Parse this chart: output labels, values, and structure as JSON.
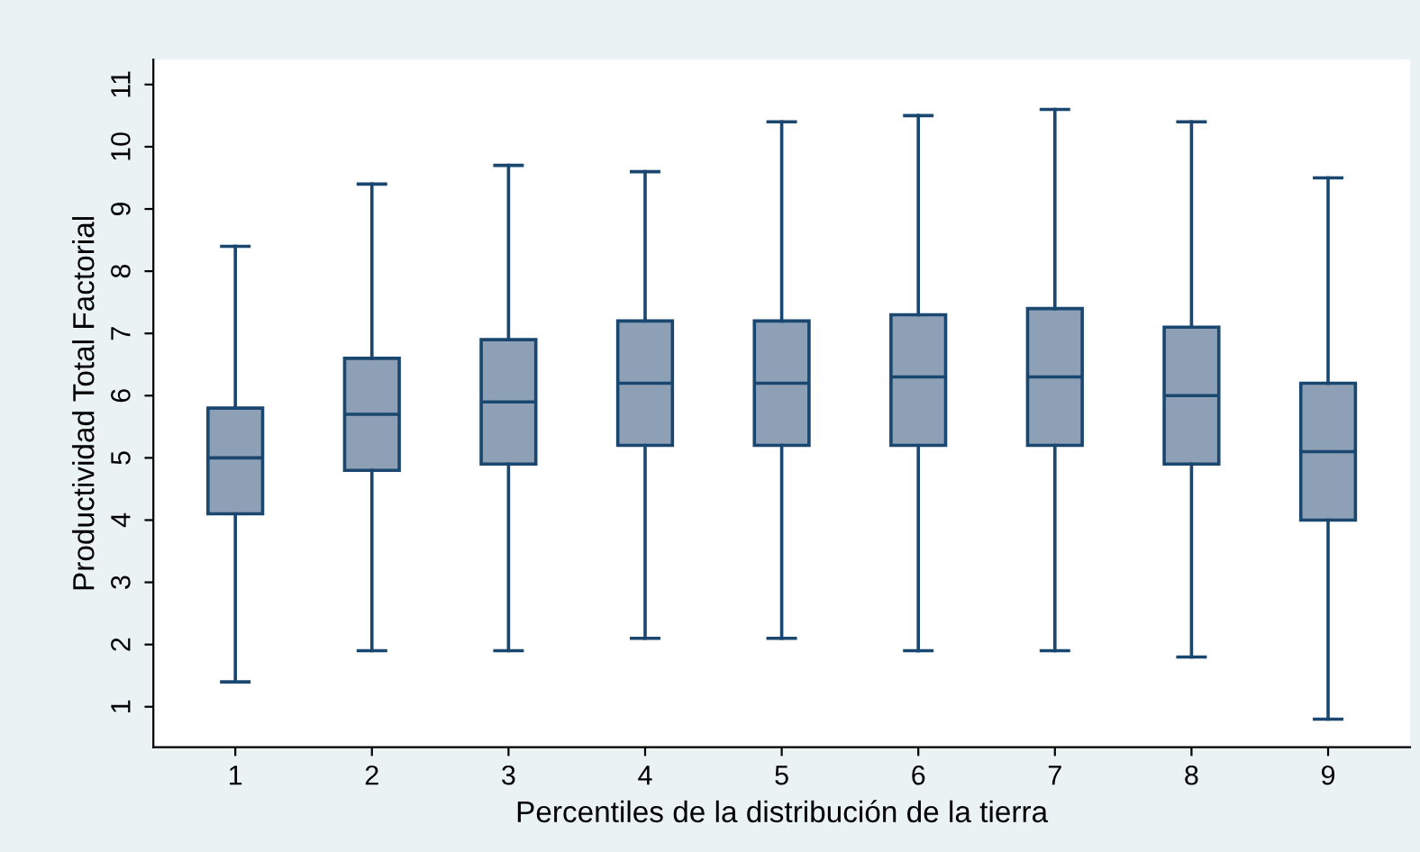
{
  "chart_data": {
    "type": "box",
    "xlabel": "Percentiles de la distribución de la tierra",
    "ylabel": "Productividad Total Factorial",
    "categories": [
      "1",
      "2",
      "3",
      "4",
      "5",
      "6",
      "7",
      "8",
      "9"
    ],
    "color": "#8da0b6",
    "boxes": [
      {
        "low": 1.4,
        "q1": 4.1,
        "median": 5.0,
        "q3": 5.8,
        "high": 8.4
      },
      {
        "low": 1.9,
        "q1": 4.8,
        "median": 5.7,
        "q3": 6.6,
        "high": 9.4
      },
      {
        "low": 1.9,
        "q1": 4.9,
        "median": 5.9,
        "q3": 6.9,
        "high": 9.7
      },
      {
        "low": 2.1,
        "q1": 5.2,
        "median": 6.2,
        "q3": 7.2,
        "high": 9.6
      },
      {
        "low": 2.1,
        "q1": 5.2,
        "median": 6.2,
        "q3": 7.2,
        "high": 10.4
      },
      {
        "low": 1.9,
        "q1": 5.2,
        "median": 6.3,
        "q3": 7.3,
        "high": 10.5
      },
      {
        "low": 1.9,
        "q1": 5.2,
        "median": 6.3,
        "q3": 7.4,
        "high": 10.6
      },
      {
        "low": 1.8,
        "q1": 4.9,
        "median": 6.0,
        "q3": 7.1,
        "high": 10.4
      },
      {
        "low": 0.8,
        "q1": 4.0,
        "median": 5.1,
        "q3": 6.2,
        "high": 9.5
      }
    ],
    "ylim": [
      0.35,
      11.4
    ],
    "yticks": [
      1,
      2,
      3,
      4,
      5,
      6,
      7,
      8,
      9,
      10,
      11
    ],
    "grid": false
  }
}
